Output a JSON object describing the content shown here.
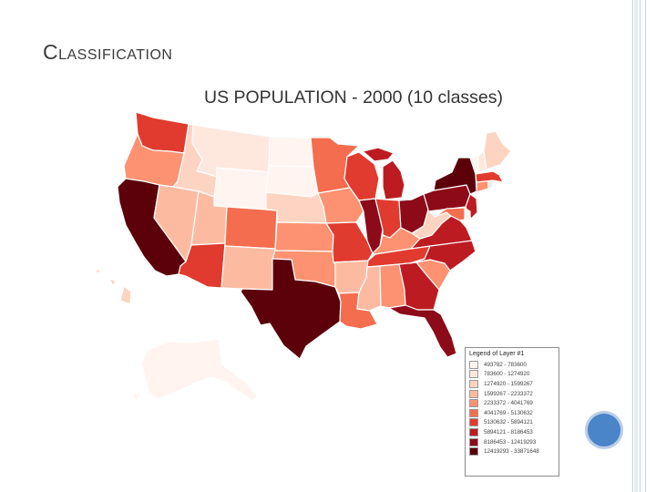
{
  "slide": {
    "title": "Classification"
  },
  "map": {
    "title": "US POPULATION - 2000 (10 classes)",
    "legend": {
      "title": "Legend of Layer #1",
      "classes": [
        {
          "label": "493782 - 783600",
          "color": "#fff4f0"
        },
        {
          "label": "783600 - 1274920",
          "color": "#fee8de"
        },
        {
          "label": "1274920 - 1599267",
          "color": "#fdd4c2"
        },
        {
          "label": "1599267 - 2233372",
          "color": "#fcbba1"
        },
        {
          "label": "2233372 - 4041769",
          "color": "#fc9272"
        },
        {
          "label": "4041769 - 5130632",
          "color": "#f46d4e"
        },
        {
          "label": "5130632 - 5894121",
          "color": "#e03b2e"
        },
        {
          "label": "5894121 - 8186453",
          "color": "#bd1b22"
        },
        {
          "label": "8186453 - 12419293",
          "color": "#8d0a18"
        },
        {
          "label": "12419293 - 33871648",
          "color": "#5c0009"
        }
      ]
    },
    "state_classes": {
      "wa": 6,
      "or": 4,
      "ca": 9,
      "nv": 3,
      "id": 2,
      "mt": 1,
      "wy": 0,
      "ut": 3,
      "az": 6,
      "co": 5,
      "nm": 3,
      "nd": 0,
      "sd": 0,
      "ne": 2,
      "ks": 4,
      "ok": 4,
      "tx": 9,
      "mn": 5,
      "ia": 4,
      "mo": 6,
      "ar": 3,
      "la": 5,
      "wi": 6,
      "il": 8,
      "mi": 7,
      "in": 6,
      "oh": 8,
      "ky": 4,
      "tn": 6,
      "ms": 3,
      "al": 4,
      "ga": 7,
      "fl": 8,
      "sc": 4,
      "nc": 7,
      "va": 7,
      "wv": 2,
      "pa": 8,
      "ny": 9,
      "nj": 7,
      "de": 0,
      "md": 5,
      "ct": 4,
      "ri": 1,
      "ma": 6,
      "vt": 0,
      "nh": 1,
      "me": 2,
      "ak": 0,
      "hi": 2
    }
  }
}
